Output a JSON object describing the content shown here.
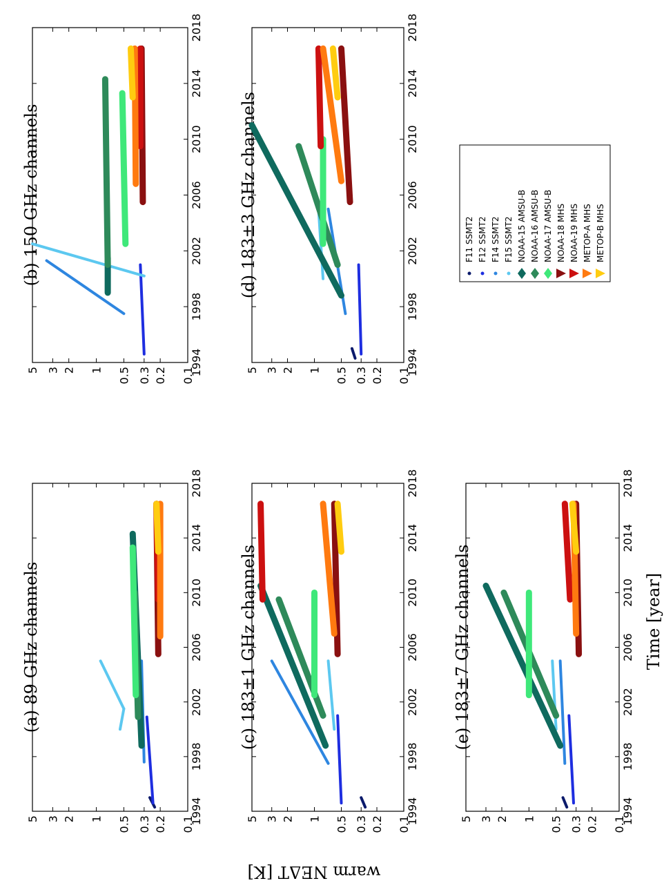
{
  "figure": {
    "ylabel": "warm NEΔT [K]",
    "xlabel": "Time [year]"
  },
  "chart_data": [
    {
      "id": "a",
      "type": "scatter",
      "title": "(a) 89 GHz channels",
      "xlim": [
        1994,
        2018
      ],
      "ylim": [
        0.1,
        5
      ],
      "yscale": "log",
      "xticks": [
        "1994",
        "1998",
        "2002",
        "2006",
        "2010",
        "2014",
        "2018"
      ],
      "yticks": [
        "0.1",
        "0.2",
        "0.3",
        "0.5",
        "1",
        "2",
        "3",
        "5"
      ],
      "series": [
        {
          "name": "F11 SSMT2",
          "segments": [
            [
              1994.3,
              0.23,
              1995.0,
              0.26
            ]
          ]
        },
        {
          "name": "F12 SSMT2",
          "segments": [
            [
              1994.6,
              0.24,
              2000.9,
              0.28
            ]
          ]
        },
        {
          "name": "F14 SSMT2",
          "segments": [
            [
              1997.6,
              0.3,
              2005.0,
              0.32
            ]
          ]
        },
        {
          "name": "F15 SSMT2",
          "segments": [
            [
              2000.0,
              0.55,
              2001.5,
              0.5
            ],
            [
              2001.5,
              0.5,
              2005.0,
              0.9
            ]
          ]
        },
        {
          "name": "NOAA-15 AMSU-B",
          "segments": [
            [
              1998.8,
              0.32,
              2014.3,
              0.4
            ]
          ]
        },
        {
          "name": "NOAA-16 AMSU-B",
          "segments": [
            [
              2000.9,
              0.35,
              2010.0,
              0.38
            ]
          ]
        },
        {
          "name": "NOAA-17 AMSU-B",
          "segments": [
            [
              2002.5,
              0.37,
              2013.3,
              0.4
            ]
          ]
        },
        {
          "name": "NOAA-18 MHS",
          "segments": [
            [
              2005.5,
              0.21,
              2016.5,
              0.22
            ]
          ]
        },
        {
          "name": "NOAA-19 MHS",
          "segments": [
            [
              2009.5,
              0.21,
              2016.5,
              0.22
            ]
          ]
        },
        {
          "name": "METOP-A MHS",
          "segments": [
            [
              2006.8,
              0.2,
              2016.5,
              0.2
            ]
          ]
        },
        {
          "name": "METOP-B MHS",
          "segments": [
            [
              2013.0,
              0.21,
              2016.5,
              0.22
            ]
          ]
        }
      ]
    },
    {
      "id": "b",
      "type": "scatter",
      "title": "(b) 150 GHz channels",
      "xlim": [
        1994,
        2018
      ],
      "ylim": [
        0.1,
        5
      ],
      "yscale": "log",
      "xticks": [
        "1994",
        "1998",
        "2002",
        "2006",
        "2010",
        "2014",
        "2018"
      ],
      "yticks": [
        "0.1",
        "0.2",
        "0.3",
        "0.5",
        "1",
        "2",
        "3",
        "5"
      ],
      "series": [
        {
          "name": "F11 SSMT2",
          "segments": []
        },
        {
          "name": "F12 SSMT2",
          "segments": [
            [
              1994.6,
              0.3,
              2001.0,
              0.33
            ]
          ]
        },
        {
          "name": "F14 SSMT2",
          "segments": [
            [
              1997.5,
              0.5,
              2001.3,
              3.5
            ]
          ]
        },
        {
          "name": "F15 SSMT2",
          "segments": [
            [
              2000.2,
              0.3,
              2002.5,
              5.0
            ]
          ]
        },
        {
          "name": "NOAA-15 AMSU-B",
          "segments": [
            [
              1999.0,
              0.75,
              2001.5,
              0.75
            ]
          ]
        },
        {
          "name": "NOAA-16 AMSU-B",
          "segments": [
            [
              2001.0,
              0.75,
              2014.3,
              0.8
            ]
          ]
        },
        {
          "name": "NOAA-17 AMSU-B",
          "segments": [
            [
              2002.5,
              0.48,
              2013.3,
              0.52
            ]
          ]
        },
        {
          "name": "NOAA-18 MHS",
          "segments": [
            [
              2005.5,
              0.31,
              2016.5,
              0.32
            ]
          ]
        },
        {
          "name": "NOAA-19 MHS",
          "segments": [
            [
              2009.5,
              0.33,
              2016.5,
              0.33
            ]
          ]
        },
        {
          "name": "METOP-A MHS",
          "segments": [
            [
              2006.8,
              0.37,
              2016.5,
              0.38
            ]
          ]
        },
        {
          "name": "METOP-B MHS",
          "segments": [
            [
              2013.0,
              0.4,
              2016.5,
              0.42
            ]
          ]
        }
      ]
    },
    {
      "id": "c",
      "type": "scatter",
      "title": "(c) 183±1 GHz channels",
      "xlim": [
        1994,
        2018
      ],
      "ylim": [
        0.1,
        5
      ],
      "yscale": "log",
      "xticks": [
        "1994",
        "1998",
        "2002",
        "2006",
        "2010",
        "2014",
        "2018"
      ],
      "yticks": [
        "0.1",
        "0.2",
        "0.3",
        "0.5",
        "1",
        "2",
        "3",
        "5"
      ],
      "series": [
        {
          "name": "F11 SSMT2",
          "segments": [
            [
              1994.3,
              0.27,
              1995.0,
              0.3
            ]
          ]
        },
        {
          "name": "F12 SSMT2",
          "segments": [
            [
              1994.6,
              0.5,
              2001.0,
              0.55
            ]
          ]
        },
        {
          "name": "F14 SSMT2",
          "segments": [
            [
              1997.5,
              0.7,
              2005.0,
              3.0
            ]
          ]
        },
        {
          "name": "F15 SSMT2",
          "segments": [
            [
              2000.0,
              0.6,
              2005.0,
              0.7
            ]
          ]
        },
        {
          "name": "NOAA-15 AMSU-B",
          "segments": [
            [
              1998.8,
              0.75,
              2010.5,
              4.0
            ]
          ]
        },
        {
          "name": "NOAA-16 AMSU-B",
          "segments": [
            [
              2001.0,
              0.8,
              2009.5,
              2.5
            ]
          ]
        },
        {
          "name": "NOAA-17 AMSU-B",
          "segments": [
            [
              2002.5,
              1.0,
              2010.0,
              1.0
            ]
          ]
        },
        {
          "name": "NOAA-18 MHS",
          "segments": [
            [
              2005.5,
              0.55,
              2016.5,
              0.6
            ]
          ]
        },
        {
          "name": "NOAA-19 MHS",
          "segments": [
            [
              2009.5,
              3.8,
              2016.5,
              4.0
            ]
          ]
        },
        {
          "name": "METOP-A MHS",
          "segments": [
            [
              2007.0,
              0.6,
              2016.5,
              0.8
            ]
          ]
        },
        {
          "name": "METOP-B MHS",
          "segments": [
            [
              2013.0,
              0.5,
              2016.5,
              0.55
            ]
          ]
        }
      ]
    },
    {
      "id": "d",
      "type": "scatter",
      "title": "(d) 183±3 GHz channels",
      "xlim": [
        1994,
        2018
      ],
      "ylim": [
        0.1,
        5
      ],
      "yscale": "log",
      "xticks": [
        "1994",
        "1998",
        "2002",
        "2006",
        "2010",
        "2014",
        "2018"
      ],
      "yticks": [
        "0.1",
        "0.2",
        "0.3",
        "0.5",
        "1",
        "2",
        "3",
        "5"
      ],
      "series": [
        {
          "name": "F11 SSMT2",
          "segments": [
            [
              1994.3,
              0.35,
              1995.0,
              0.38
            ]
          ]
        },
        {
          "name": "F12 SSMT2",
          "segments": [
            [
              1994.6,
              0.3,
              2001.0,
              0.32
            ]
          ]
        },
        {
          "name": "F14 SSMT2",
          "segments": [
            [
              1997.5,
              0.45,
              2005.0,
              0.7
            ]
          ]
        },
        {
          "name": "F15 SSMT2",
          "segments": [
            [
              2000.0,
              0.8,
              2005.0,
              0.9
            ]
          ]
        },
        {
          "name": "NOAA-15 AMSU-B",
          "segments": [
            [
              1998.8,
              0.5,
              2011.0,
              5.0
            ]
          ]
        },
        {
          "name": "NOAA-16 AMSU-B",
          "segments": [
            [
              2001.0,
              0.55,
              2009.5,
              1.5
            ]
          ]
        },
        {
          "name": "NOAA-17 AMSU-B",
          "segments": [
            [
              2002.5,
              0.8,
              2010.0,
              0.8
            ]
          ]
        },
        {
          "name": "NOAA-18 MHS",
          "segments": [
            [
              2005.5,
              0.4,
              2016.5,
              0.5
            ]
          ]
        },
        {
          "name": "NOAA-19 MHS",
          "segments": [
            [
              2009.5,
              0.85,
              2016.5,
              0.9
            ]
          ]
        },
        {
          "name": "METOP-A MHS",
          "segments": [
            [
              2007.0,
              0.5,
              2016.5,
              0.8
            ]
          ]
        },
        {
          "name": "METOP-B MHS",
          "segments": [
            [
              2013.0,
              0.55,
              2016.5,
              0.62
            ]
          ]
        }
      ]
    },
    {
      "id": "e",
      "type": "scatter",
      "title": "(e) 183±7 GHz channels",
      "xlim": [
        1994,
        2018
      ],
      "ylim": [
        0.1,
        5
      ],
      "yscale": "log",
      "xticks": [
        "1994",
        "1998",
        "2002",
        "2006",
        "2010",
        "2014",
        "2018"
      ],
      "yticks": [
        "0.1",
        "0.2",
        "0.3",
        "0.5",
        "1",
        "2",
        "3",
        "5"
      ],
      "series": [
        {
          "name": "F11 SSMT2",
          "segments": [
            [
              1994.3,
              0.38,
              1995.0,
              0.42
            ]
          ]
        },
        {
          "name": "F12 SSMT2",
          "segments": [
            [
              1994.6,
              0.32,
              2001.0,
              0.36
            ]
          ]
        },
        {
          "name": "F14 SSMT2",
          "segments": [
            [
              1997.5,
              0.4,
              2005.0,
              0.45
            ]
          ]
        },
        {
          "name": "F15 SSMT2",
          "segments": [
            [
              2000.0,
              0.5,
              2005.0,
              0.55
            ]
          ]
        },
        {
          "name": "NOAA-15 AMSU-B",
          "segments": [
            [
              1998.8,
              0.45,
              2010.5,
              3.0
            ]
          ]
        },
        {
          "name": "NOAA-16 AMSU-B",
          "segments": [
            [
              2001.0,
              0.5,
              2010.0,
              1.9
            ]
          ]
        },
        {
          "name": "NOAA-17 AMSU-B",
          "segments": [
            [
              2002.5,
              1.0,
              2010.0,
              1.0
            ]
          ]
        },
        {
          "name": "NOAA-18 MHS",
          "segments": [
            [
              2005.5,
              0.28,
              2016.5,
              0.3
            ]
          ]
        },
        {
          "name": "NOAA-19 MHS",
          "segments": [
            [
              2009.5,
              0.35,
              2016.5,
              0.4
            ]
          ]
        },
        {
          "name": "METOP-A MHS",
          "segments": [
            [
              2007.0,
              0.3,
              2016.5,
              0.32
            ]
          ]
        },
        {
          "name": "METOP-B MHS",
          "segments": [
            [
              2013.0,
              0.3,
              2016.5,
              0.33
            ]
          ]
        }
      ]
    }
  ],
  "legend": {
    "entries": [
      {
        "name": "F11 SSMT2",
        "marker": "dot",
        "color": "#0b1a6b"
      },
      {
        "name": "F12 SSMT2",
        "marker": "dot",
        "color": "#1e2ee0"
      },
      {
        "name": "F14 SSMT2",
        "marker": "dot",
        "color": "#2e86e0"
      },
      {
        "name": "F15 SSMT2",
        "marker": "dot",
        "color": "#5cc8f0"
      },
      {
        "name": "NOAA-15 AMSU-B",
        "marker": "diamond",
        "color": "#0f6a5e"
      },
      {
        "name": "NOAA-16 AMSU-B",
        "marker": "diamond",
        "color": "#2e8a5a"
      },
      {
        "name": "NOAA-17 AMSU-B",
        "marker": "diamond",
        "color": "#3fe87a"
      },
      {
        "name": "NOAA-18 MHS",
        "marker": "triangle",
        "color": "#8a1010"
      },
      {
        "name": "NOAA-19 MHS",
        "marker": "triangle",
        "color": "#cc1010"
      },
      {
        "name": "METOP-A MHS",
        "marker": "triangle",
        "color": "#ff7a10"
      },
      {
        "name": "METOP-B MHS",
        "marker": "triangle",
        "color": "#ffcc10"
      }
    ]
  }
}
